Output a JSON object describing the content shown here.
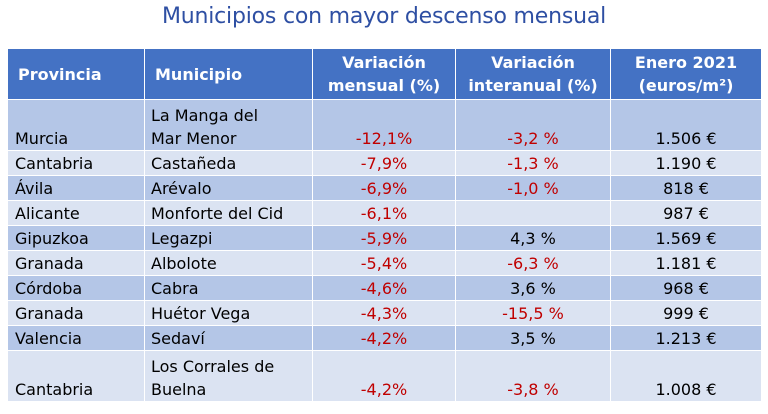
{
  "title": "Municipios con mayor descenso mensual",
  "headers": {
    "provincia": "Provincia",
    "municipio": "Municipio",
    "var_mensual_1": "Variación",
    "var_mensual_2": "mensual (%)",
    "var_interanual_1": "Variación",
    "var_interanual_2": "interanual (%)",
    "enero_1": "Enero 2021",
    "enero_2": "(euros/m²)"
  },
  "rows": [
    {
      "provincia": "Murcia",
      "municipio_1": "La Manga del",
      "municipio_2": "Mar Menor",
      "mensual": "-12,1%",
      "interanual": "-3,2 %",
      "enero": "1.506 €"
    },
    {
      "provincia": "Cantabria",
      "municipio": "Castañeda",
      "mensual": "-7,9%",
      "interanual": "-1,3 %",
      "enero": "1.190 €"
    },
    {
      "provincia": "Ávila",
      "municipio": "Arévalo",
      "mensual": "-6,9%",
      "interanual": "-1,0 %",
      "enero": "818 €"
    },
    {
      "provincia": "Alicante",
      "municipio": "Monforte del Cid",
      "mensual": "-6,1%",
      "interanual": "",
      "enero": "987 €"
    },
    {
      "provincia": "Gipuzkoa",
      "municipio": "Legazpi",
      "mensual": "-5,9%",
      "interanual": "4,3 %",
      "enero": "1.569 €"
    },
    {
      "provincia": "Granada",
      "municipio": "Albolote",
      "mensual": "-5,4%",
      "interanual": "-6,3 %",
      "enero": "1.181 €"
    },
    {
      "provincia": "Córdoba",
      "municipio": "Cabra",
      "mensual": "-4,6%",
      "interanual": "3,6 %",
      "enero": "968 €"
    },
    {
      "provincia": "Granada",
      "municipio": "Huétor Vega",
      "mensual": "-4,3%",
      "interanual": "-15,5 %",
      "enero": "999 €"
    },
    {
      "provincia": "Valencia",
      "municipio": "Sedaví",
      "mensual": "-4,2%",
      "interanual": "3,5 %",
      "enero": "1.213 €"
    },
    {
      "provincia": "Cantabria",
      "municipio_1": "Los Corrales de",
      "municipio_2": "Buelna",
      "mensual": "-4,2%",
      "interanual": "-3,8 %",
      "enero": "1.008 €"
    }
  ],
  "colors": {
    "title": "#2e4fa3",
    "header_bg": "#4472c4",
    "row_dark": "#b4c6e7",
    "row_light": "#dbe3f2",
    "negative": "#c00000"
  }
}
